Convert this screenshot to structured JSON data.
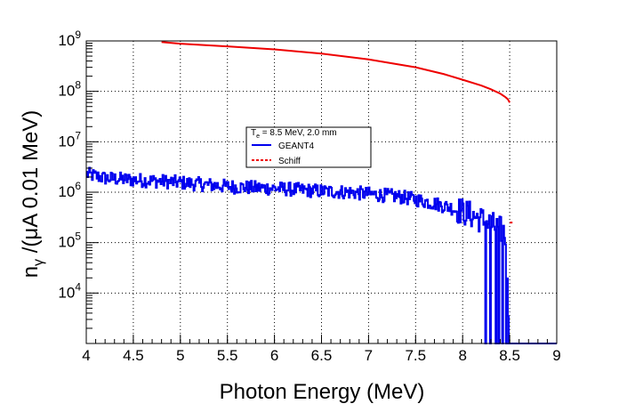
{
  "chart_data": {
    "type": "line",
    "title": "",
    "xlabel": "Photon Energy (MeV)",
    "ylabel_parts": {
      "main": "n",
      "sub": "γ",
      "rest": " /(μA 0.01 MeV)"
    },
    "xlim": [
      4,
      9
    ],
    "ylim": [
      1000,
      1000000000
    ],
    "yscale": "log",
    "grid": true,
    "grid_style": "dotted",
    "x_ticks": [
      "4",
      "4.5",
      "5",
      "5.5",
      "6",
      "6.5",
      "7",
      "7.5",
      "8",
      "8.5",
      "9"
    ],
    "y_ticks": [
      {
        "value": 10000,
        "base": "10",
        "exp": "4"
      },
      {
        "value": 100000,
        "base": "10",
        "exp": "5"
      },
      {
        "value": 1000000,
        "base": "10",
        "exp": "6"
      },
      {
        "value": 10000000,
        "base": "10",
        "exp": "7"
      },
      {
        "value": 100000000,
        "base": "10",
        "exp": "8"
      },
      {
        "value": 1000000000,
        "base": "10",
        "exp": "9"
      }
    ],
    "legend": {
      "position": "upper-center",
      "header": {
        "main": "T",
        "sub": "e",
        "rest": " = 8.5 MeV, 2.0 mm"
      },
      "entries": [
        {
          "label": "GEANT4",
          "color": "#0000ee",
          "style": "solid"
        },
        {
          "label": "Schiff",
          "color": "#ee0000",
          "style": "dashed"
        }
      ]
    },
    "series": [
      {
        "name": "GEANT4",
        "color": "#0000ee",
        "step": true,
        "bin_width": 0.01,
        "x_start": 4.0,
        "anchors": [
          [
            4.0,
            2300000
          ],
          [
            4.2,
            1900000
          ],
          [
            4.5,
            1750000
          ],
          [
            4.8,
            1650000
          ],
          [
            5.0,
            1550000
          ],
          [
            5.3,
            1400000
          ],
          [
            5.5,
            1300000
          ],
          [
            5.8,
            1220000
          ],
          [
            6.0,
            1200000
          ],
          [
            6.3,
            1100000
          ],
          [
            6.5,
            1050000
          ],
          [
            6.8,
            1000000
          ],
          [
            7.0,
            920000
          ],
          [
            7.3,
            830000
          ],
          [
            7.5,
            720000
          ],
          [
            7.7,
            600000
          ],
          [
            7.9,
            480000
          ],
          [
            8.1,
            350000
          ],
          [
            8.3,
            230000
          ],
          [
            8.45,
            160000
          ],
          [
            8.5,
            1000
          ],
          [
            9.0,
            1000
          ]
        ],
        "dropouts": [
          8.24,
          8.29,
          8.35,
          8.38,
          8.42,
          8.46
        ],
        "end_x": 9.0
      },
      {
        "name": "Schiff",
        "color": "#ee0000",
        "x": [
          4.8,
          5.0,
          5.5,
          6.0,
          6.5,
          7.0,
          7.5,
          7.8,
          8.0,
          8.2,
          8.3,
          8.4,
          8.45,
          8.48,
          8.5
        ],
        "y": [
          950000000,
          880000000,
          780000000,
          680000000,
          560000000,
          430000000,
          300000000,
          220000000,
          170000000,
          130000000,
          110000000,
          90000000,
          78000000,
          70000000,
          60000000
        ],
        "stray_points": [
          {
            "x": 8.52,
            "y": 250000
          }
        ]
      }
    ]
  }
}
